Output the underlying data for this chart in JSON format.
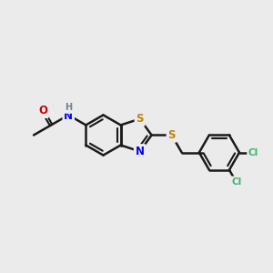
{
  "bg_color": "#ebebeb",
  "bond_color": "#1a1a1a",
  "bond_width": 1.8,
  "atom_colors": {
    "S": "#b8860b",
    "N": "#0000ff",
    "O": "#cc0000",
    "Cl": "#3cb371",
    "H": "#708090"
  },
  "font_size": 8.5,
  "fig_size": [
    3.0,
    3.0
  ],
  "dpi": 100,
  "xlim": [
    -2.8,
    4.2
  ],
  "ylim": [
    -2.0,
    2.2
  ]
}
